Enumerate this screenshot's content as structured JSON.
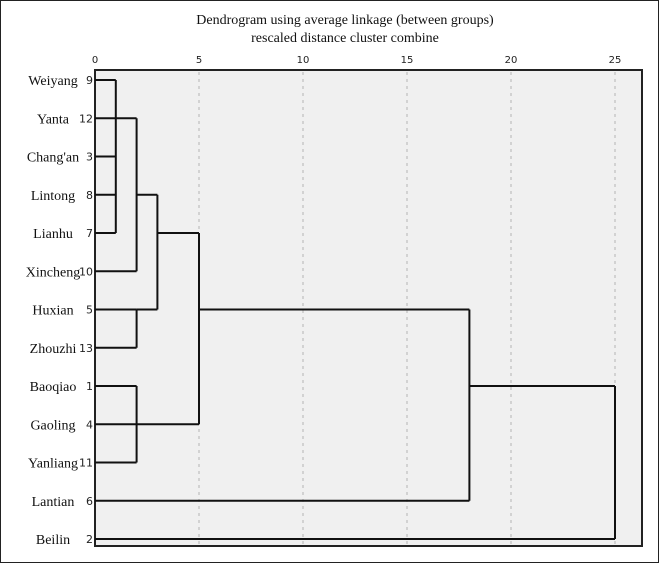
{
  "chart_data": {
    "type": "dendrogram",
    "title": "Dendrogram using average linkage (between groups)",
    "subtitle": "rescaled distance cluster combine",
    "xlim": [
      0,
      25
    ],
    "x_ticks": [
      "0",
      "5",
      "10",
      "15",
      "20",
      "25"
    ],
    "grid": "vertical dotted",
    "colors": {
      "plot_bg": "#f0f0f0",
      "line": "#111111",
      "grid": "#c8c8c8"
    },
    "leaves": [
      {
        "name": "Weiyang",
        "id": "9"
      },
      {
        "name": "Yanta",
        "id": "12"
      },
      {
        "name": "Chang'an",
        "id": "3"
      },
      {
        "name": "Lintong",
        "id": "8"
      },
      {
        "name": "Lianhu",
        "id": "7"
      },
      {
        "name": "Xincheng",
        "id": "10"
      },
      {
        "name": "Huxian",
        "id": "5"
      },
      {
        "name": "Zhouzhi",
        "id": "13"
      },
      {
        "name": "Baoqiao",
        "id": "1"
      },
      {
        "name": "Gaoling",
        "id": "4"
      },
      {
        "name": "Yanliang",
        "id": "11"
      },
      {
        "name": "Lantian",
        "id": "6"
      },
      {
        "name": "Beilin",
        "id": "2"
      }
    ],
    "merges": [
      {
        "id": "A",
        "children": [
          "L0",
          "L1",
          "L2",
          "L3",
          "L4"
        ],
        "distance": 1
      },
      {
        "id": "B",
        "children": [
          "A",
          "L5"
        ],
        "distance": 2
      },
      {
        "id": "C",
        "children": [
          "L6",
          "L7"
        ],
        "distance": 2
      },
      {
        "id": "D",
        "children": [
          "L8",
          "L9",
          "L10"
        ],
        "distance": 2
      },
      {
        "id": "E",
        "children": [
          "B",
          "C"
        ],
        "distance": 3
      },
      {
        "id": "F",
        "children": [
          "E",
          "D"
        ],
        "distance": 5
      },
      {
        "id": "G",
        "children": [
          "F",
          "L11"
        ],
        "distance": 18
      },
      {
        "id": "H",
        "children": [
          "G",
          "L12"
        ],
        "distance": 25
      }
    ]
  }
}
